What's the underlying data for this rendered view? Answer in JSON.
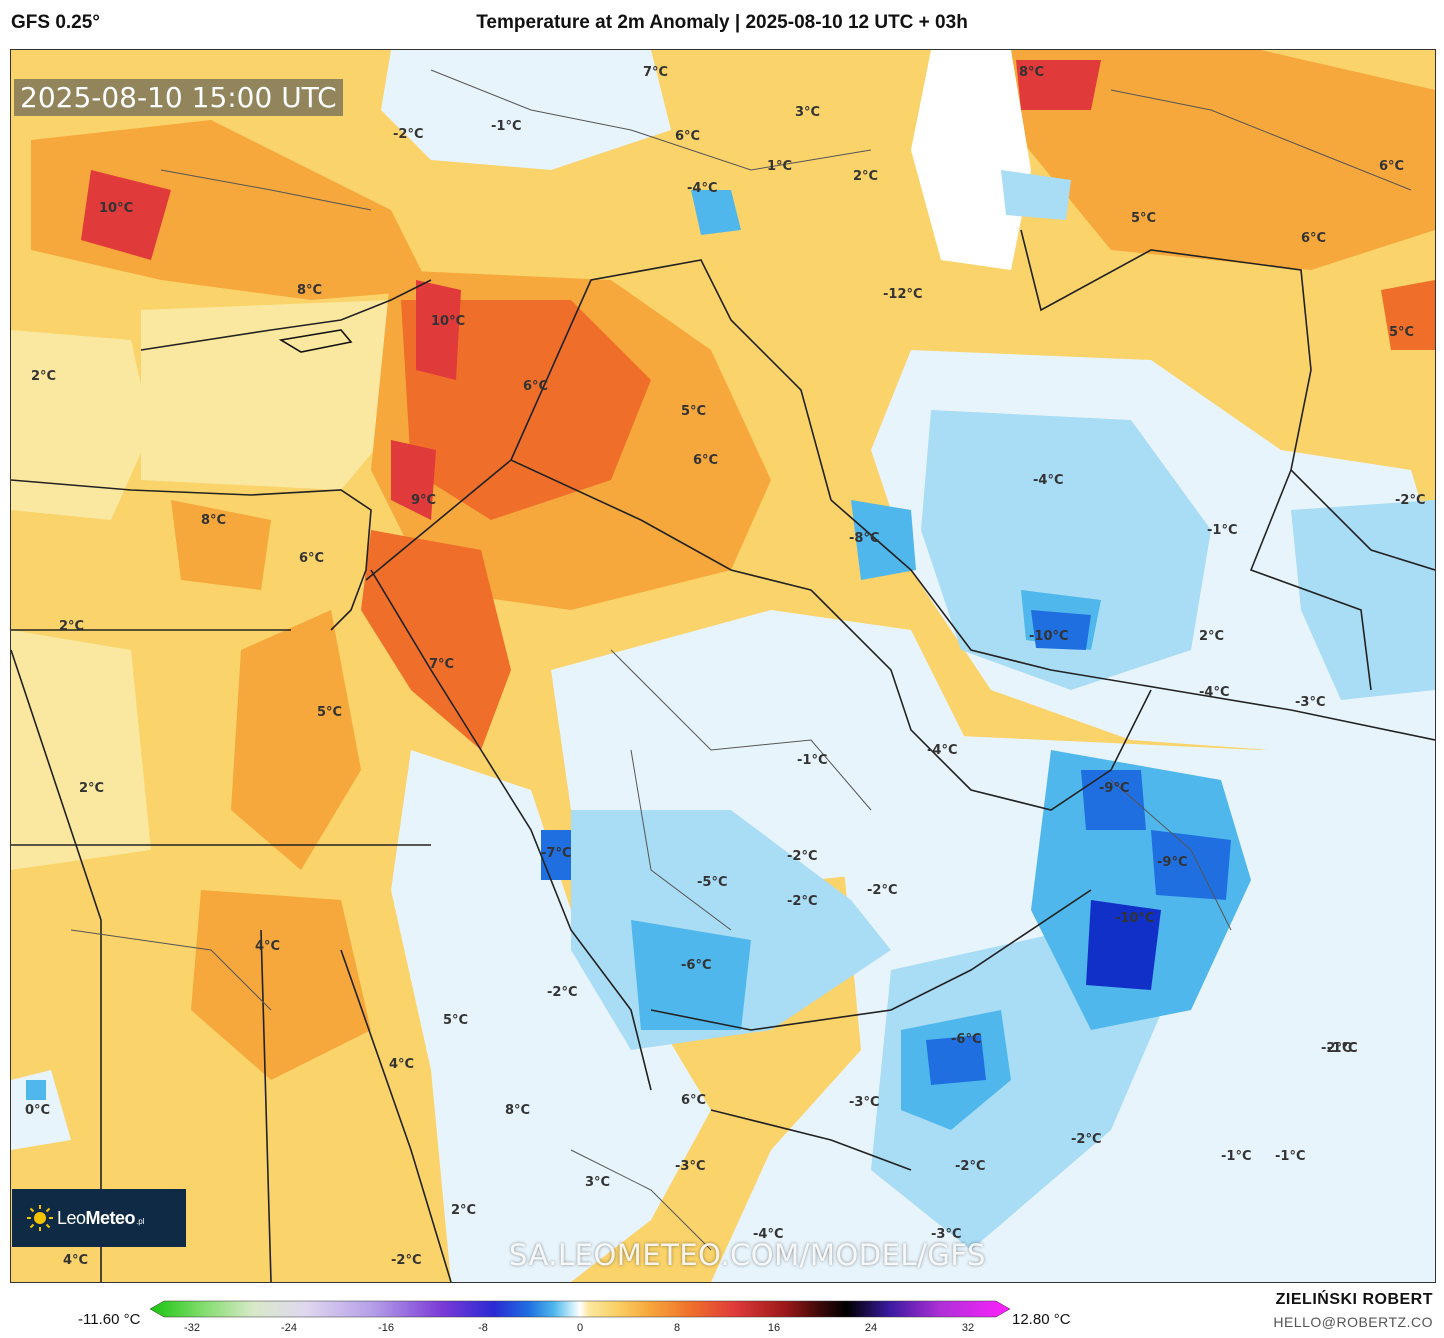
{
  "header": {
    "model": "GFS 0.25°",
    "title": "Temperature at 2m Anomaly | 2025-08-10 12 UTC + 03h"
  },
  "map": {
    "valid_time": "2025-08-10 15:00 UTC",
    "watermark": "SA.LEOMETEO.COM/MODEL/GFS",
    "logo": {
      "name_bold": "Leo",
      "name_rest": "Meteo",
      "suffix": ".pl"
    },
    "labels": [
      "10°C",
      "8°C",
      "10°C",
      "6°C",
      "5°C",
      "6°C",
      "9°C",
      "8°C",
      "6°C",
      "7°C",
      "5°C",
      "2°C",
      "2°C",
      "2°C",
      "4°C",
      "5°C",
      "4°C",
      "0°C",
      "8°C",
      "6°C",
      "3°C",
      "2°C",
      "4°C",
      "-2°C",
      "-1°C",
      "-2°C",
      "7°C",
      "6°C",
      "3°C",
      "-4°C",
      "1°C",
      "2°C",
      "-12°C",
      "8°C",
      "6°C",
      "5°C",
      "6°C",
      "5°C",
      "-2°C",
      "-4°C",
      "-1°C",
      "-8°C",
      "-10°C",
      "2°C",
      "-4°C",
      "-3°C",
      "-4°C",
      "-1°C",
      "-9°C",
      "-9°C",
      "-10°C",
      "-3°C",
      "-7°C",
      "-5°C",
      "-2°C",
      "-2°C",
      "-2°C",
      "-6°C",
      "-2°C",
      "-6°C",
      "-3°C",
      "-4°C",
      "-3°C",
      "-2°C",
      "-2°C",
      "-2°C",
      "-1°C",
      "-1°C",
      "-1°C",
      "-1°C"
    ],
    "colors": {
      "warm_light": "#fbe8a0",
      "warm": "#fad36a",
      "warm_orange": "#f6a83c",
      "hot": "#ef6f2a",
      "very_hot": "#e03a3a",
      "cool_light": "#e8f4fb",
      "cool": "#a9dcf5",
      "cold": "#4fb7ec",
      "very_cold": "#1f6fe0",
      "extreme_cold": "#1030c8"
    }
  },
  "legend": {
    "min_label": "-11.60 °C",
    "max_label": "12.80 °C",
    "ticks": [
      "-32",
      "-24",
      "-16",
      "-8",
      "0",
      "8",
      "16",
      "24",
      "32"
    ]
  },
  "credits": {
    "author": "ZIELIŃSKI ROBERT",
    "email": "HELLO@ROBERTZ.CO"
  }
}
